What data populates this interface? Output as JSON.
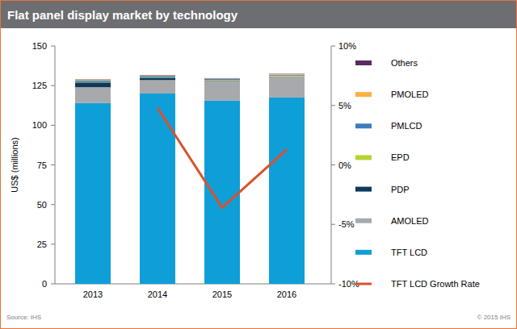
{
  "chart_data": {
    "type": "bar",
    "stacked": true,
    "title": "Flat panel display market by technology",
    "y_label": "US$ (millions)",
    "source": "Source: IHS",
    "copyright": "© 2015 IHS",
    "legend": "right",
    "categories": [
      "2013",
      "2014",
      "2015",
      "2016"
    ],
    "ylim": [
      0,
      150
    ],
    "yticks": [
      0,
      25,
      50,
      75,
      100,
      125,
      150
    ],
    "y2lim": [
      -10,
      10
    ],
    "y2ticks": [
      {
        "value": -10,
        "label": "-10%"
      },
      {
        "value": -5,
        "label": "-5%"
      },
      {
        "value": 0,
        "label": "0%"
      },
      {
        "value": 5,
        "label": "5%"
      },
      {
        "value": 10,
        "label": "10%"
      }
    ],
    "series": [
      {
        "name": "TFT LCD",
        "color": "#0f9fd8",
        "values": [
          114,
          120,
          115.5,
          117.5
        ]
      },
      {
        "name": "AMOLED",
        "color": "#a7a9ac",
        "values": [
          10,
          8.5,
          12.5,
          13.5
        ]
      },
      {
        "name": "PDP",
        "color": "#0d3a5c",
        "values": [
          3,
          1.5,
          0.3,
          0
        ]
      },
      {
        "name": "EPD",
        "color": "#b5d334",
        "values": [
          0.3,
          0.3,
          0.3,
          0.3
        ]
      },
      {
        "name": "PMLCD",
        "color": "#3b7dbf",
        "values": [
          1,
          0.8,
          0.6,
          0.5
        ]
      },
      {
        "name": "PMOLED",
        "color": "#fbb040",
        "values": [
          0.5,
          0.4,
          0.3,
          0.5
        ]
      },
      {
        "name": "Others",
        "color": "#5b2a5e",
        "values": [
          0.2,
          0.2,
          0.2,
          0.2
        ]
      },
      {
        "name": "TFT LCD Growth Rate",
        "color": "#d9512c",
        "type": "line",
        "axis": "y2",
        "values": [
          null,
          4.8,
          -3.6,
          1.3
        ]
      }
    ]
  }
}
